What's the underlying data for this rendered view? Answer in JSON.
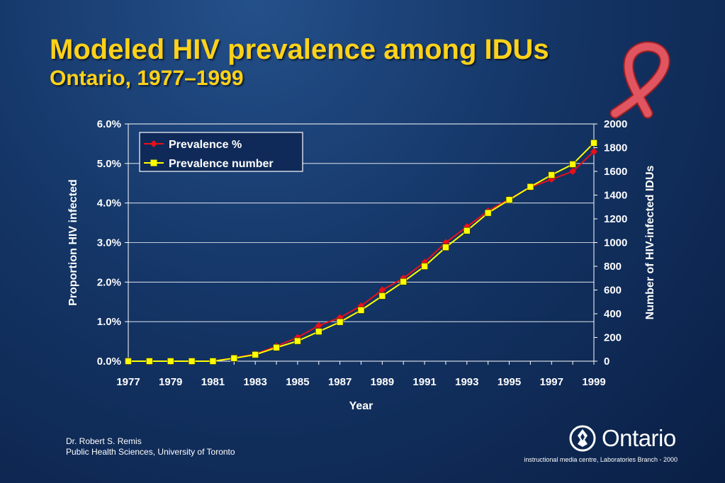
{
  "title": "Modeled HIV prevalence among IDUs",
  "subtitle": "Ontario, 1977–1999",
  "credit": {
    "line1": "Dr. Robert S. Remis",
    "line2": "Public Health Sciences, University of Toronto"
  },
  "footer_note": "instructional media centre, Laboratories Branch - 2000",
  "logo_text": "Ontario",
  "icons": [
    "red-ribbon-icon",
    "ontario-trillium-icon"
  ],
  "colors": {
    "title": "#ffd21a",
    "prevalence_pct": "#e8101a",
    "prevalence_number": "#ffff00"
  },
  "chart_data": {
    "type": "line",
    "xlabel": "Year",
    "ylabel": "Proportion HIV infected",
    "y2label": "Number of HIV-infected IDUs",
    "x": [
      1977,
      1978,
      1979,
      1980,
      1981,
      1982,
      1983,
      1984,
      1985,
      1986,
      1987,
      1988,
      1989,
      1990,
      1991,
      1992,
      1993,
      1994,
      1995,
      1996,
      1997,
      1998,
      1999
    ],
    "x_tick_labels": [
      "1977",
      "1979",
      "1981",
      "1983",
      "1985",
      "1987",
      "1989",
      "1991",
      "1993",
      "1995",
      "1997",
      "1999"
    ],
    "y_ticks": [
      "0.0%",
      "1.0%",
      "2.0%",
      "3.0%",
      "4.0%",
      "5.0%",
      "6.0%"
    ],
    "y2_ticks": [
      "0",
      "200",
      "400",
      "600",
      "800",
      "1000",
      "1200",
      "1400",
      "1600",
      "1800",
      "2000"
    ],
    "ylim": [
      0,
      6
    ],
    "y2lim": [
      0,
      2000
    ],
    "grid": true,
    "legend_position": "top-left",
    "series": [
      {
        "name": "Prevalence %",
        "axis": "left",
        "marker": "diamond",
        "values": [
          0,
          0,
          0,
          0,
          0,
          0.08,
          0.18,
          0.38,
          0.6,
          0.9,
          1.1,
          1.4,
          1.8,
          2.1,
          2.5,
          3.0,
          3.4,
          3.8,
          4.1,
          4.4,
          4.6,
          4.8,
          5.3
        ]
      },
      {
        "name": "Prevalence number",
        "axis": "right",
        "marker": "square",
        "values": [
          0,
          0,
          0,
          0,
          0,
          25,
          55,
          115,
          170,
          250,
          330,
          430,
          550,
          670,
          800,
          960,
          1100,
          1250,
          1360,
          1470,
          1570,
          1660,
          1840
        ]
      }
    ]
  }
}
